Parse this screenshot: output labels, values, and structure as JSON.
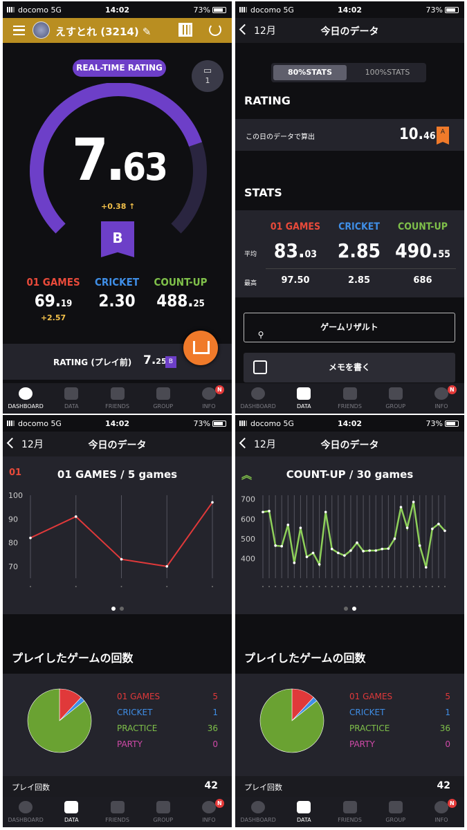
{
  "status": {
    "carrier": "docomo",
    "network": "5G",
    "time": "14:02",
    "battery": "73%"
  },
  "tabs": [
    "DASHBOARD",
    "DATA",
    "FRIENDS",
    "GROUP",
    "INFO"
  ],
  "info_badge": "N",
  "dashboard": {
    "user": "えすとれ (3214)",
    "realtime_label": "REAL-TIME RATING",
    "ticket_count": "1",
    "rating_int": "7.",
    "rating_dec": "63",
    "rating_value": 7.63,
    "delta": "+0.38 ↑",
    "class": "B",
    "games": [
      {
        "label": "01 GAMES",
        "int": "69.",
        "dec": "19",
        "sub": "+2.57",
        "color": "#e84a3a"
      },
      {
        "label": "CRICKET",
        "int": "2.",
        "dec": "30",
        "sub": "",
        "color": "#3f8ee6"
      },
      {
        "label": "COUNT-UP",
        "int": "488.",
        "dec": "25",
        "sub": "",
        "color": "#7fc04a"
      }
    ],
    "prev_rating_label": "RATING (プレイ前)",
    "prev_int": "7.",
    "prev_dec": "25",
    "prev_class": "B"
  },
  "daydata": {
    "back": "12月",
    "title": "今日のデータ",
    "toggle_on": "80%STATS",
    "toggle_off": "100%STATS",
    "rating_heading": "RATING",
    "rating_row_label": "この日のデータで算出",
    "rating_int": "10.",
    "rating_dec": "46",
    "rating_class": "A",
    "stats_heading": "STATS",
    "col_heads": [
      "01 GAMES",
      "CRICKET",
      "COUNT-UP"
    ],
    "avg_label": "平均",
    "max_label": "最高",
    "avg": [
      {
        "int": "83.",
        "dec": "03"
      },
      {
        "int": "2.",
        "dec": "85"
      },
      {
        "int": "490.",
        "dec": "55"
      }
    ],
    "max": [
      "97.50",
      "2.85",
      "686"
    ],
    "result_button": "ゲームリザルト",
    "memo_button": "メモを書く"
  },
  "chart01": {
    "icon_label": "01",
    "title": "01 GAMES / 5 games"
  },
  "chartcu": {
    "title": "COUNT-UP / 30 games"
  },
  "chart_data": [
    {
      "type": "line",
      "title": "01 GAMES / 5 games",
      "x": [
        1,
        2,
        3,
        4,
        5
      ],
      "y": [
        82,
        91,
        73,
        70,
        97
      ],
      "ylim": [
        65,
        100
      ],
      "yticks": [
        70,
        80,
        90,
        100
      ],
      "color": "#e0393a"
    },
    {
      "type": "line",
      "title": "COUNT-UP / 30 games",
      "x": [
        1,
        2,
        3,
        4,
        5,
        6,
        7,
        8,
        9,
        10,
        11,
        12,
        13,
        14,
        15,
        16,
        17,
        18,
        19,
        20,
        21,
        22,
        23,
        24,
        25,
        26,
        27,
        28,
        29,
        30
      ],
      "y": [
        635,
        640,
        465,
        462,
        570,
        378,
        555,
        408,
        428,
        370,
        635,
        448,
        428,
        415,
        440,
        480,
        437,
        440,
        440,
        448,
        450,
        500,
        660,
        555,
        686,
        465,
        355,
        550,
        575,
        540
      ],
      "ylim": [
        300,
        720
      ],
      "yticks": [
        400,
        500,
        600,
        700
      ],
      "color": "#8ed05a"
    },
    {
      "type": "pie",
      "title": "プレイしたゲームの回数",
      "categories": [
        "01 GAMES",
        "CRICKET",
        "PRACTICE",
        "PARTY"
      ],
      "values": [
        5,
        1,
        36,
        0
      ],
      "colors": [
        "#e0393a",
        "#3f8ee6",
        "#6aa232",
        "#d04aa8"
      ]
    }
  ],
  "plays": {
    "heading": "プレイしたゲームの回数",
    "legend": [
      {
        "label": "01 GAMES",
        "count": "5",
        "color": "#e0393a"
      },
      {
        "label": "CRICKET",
        "count": "1",
        "color": "#3f8ee6"
      },
      {
        "label": "PRACTICE",
        "count": "36",
        "color": "#7fc04a"
      },
      {
        "label": "PARTY",
        "count": "0",
        "color": "#d04aa8"
      }
    ],
    "total_label": "プレイ回数",
    "total": "42"
  }
}
